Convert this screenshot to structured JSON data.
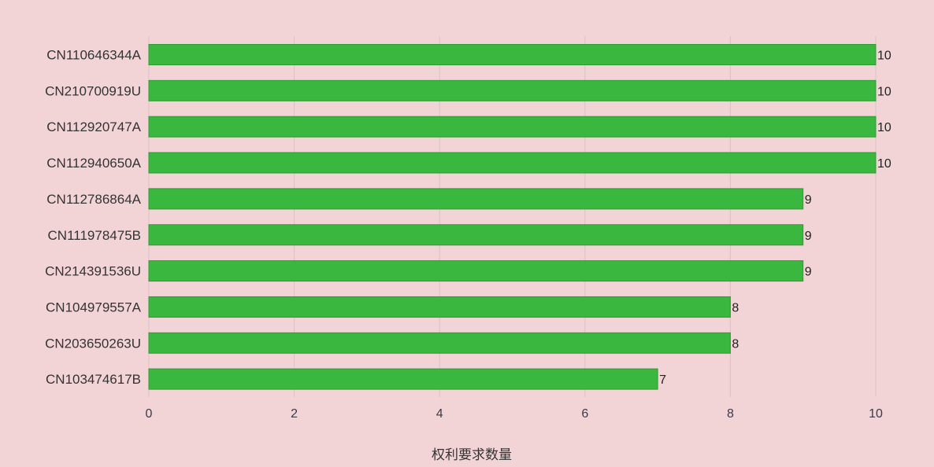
{
  "colors": {
    "background": "#f2d4d7",
    "bar": "#3ab73f",
    "bar_stroke": "#2f9a33"
  },
  "chart_data": {
    "type": "bar",
    "orientation": "horizontal",
    "categories": [
      "CN110646344A",
      "CN210700919U",
      "CN112920747A",
      "CN112940650A",
      "CN112786864A",
      "CN111978475B",
      "CN214391536U",
      "CN104979557A",
      "CN203650263U",
      "CN103474617B"
    ],
    "values": [
      10,
      10,
      10,
      10,
      9,
      9,
      9,
      8,
      8,
      7
    ],
    "xlabel": "权利要求数量",
    "ylabel": "",
    "xlim": [
      0,
      10
    ],
    "xticks": [
      0,
      2,
      4,
      6,
      8,
      10
    ],
    "grid": true,
    "data_labels": true
  }
}
